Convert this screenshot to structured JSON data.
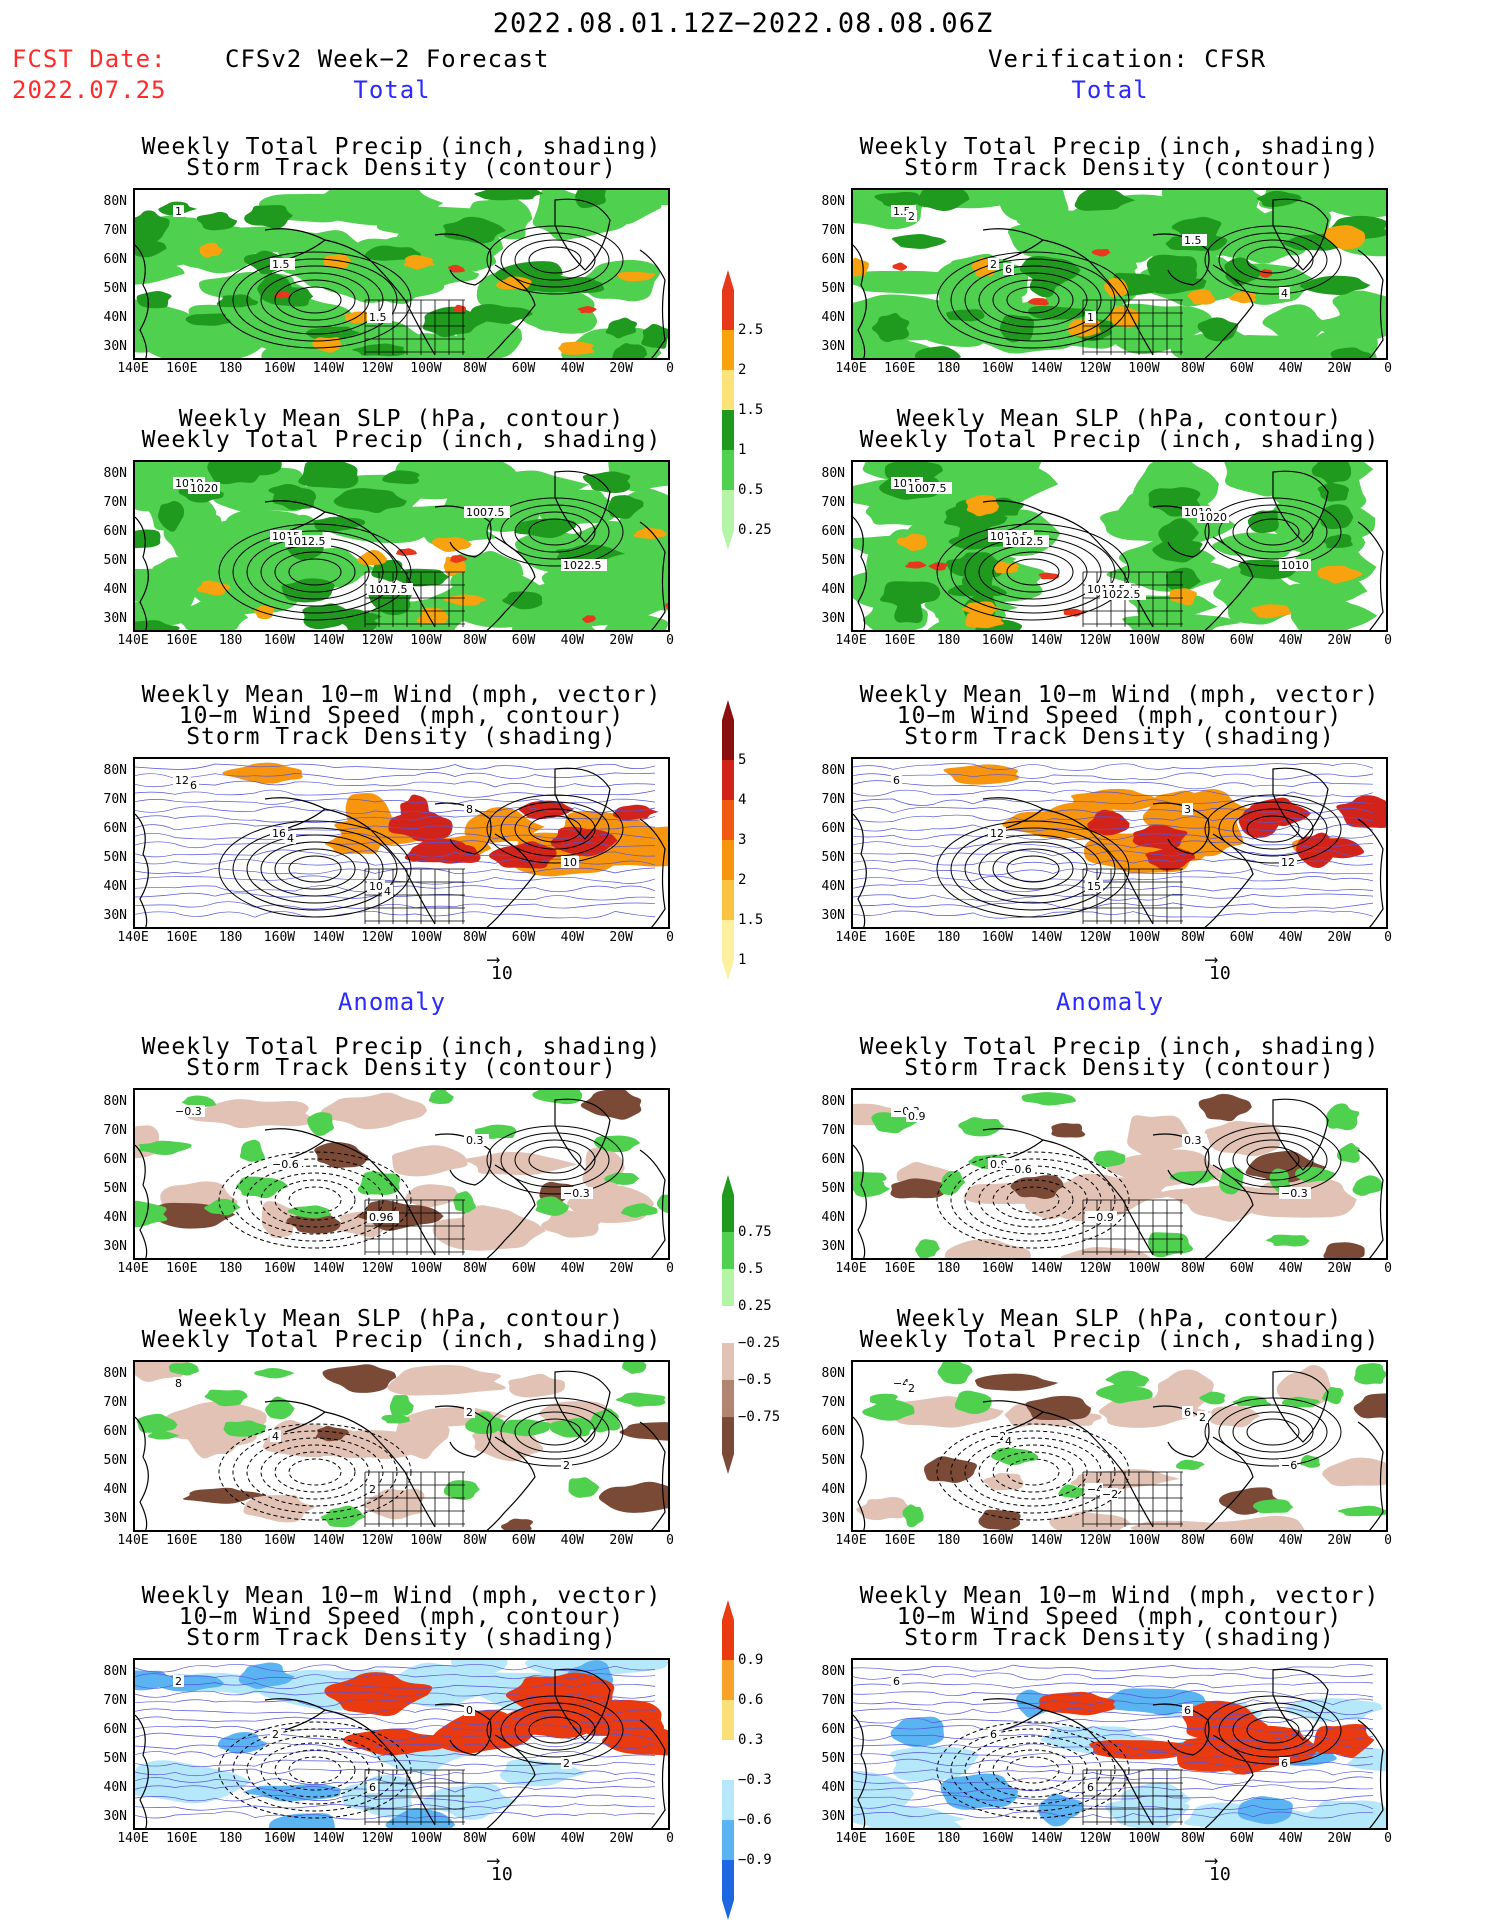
{
  "header": {
    "period": "2022.08.01.12Z−2022.08.08.06Z",
    "fcst_label": "FCST Date:",
    "fcst_date": "2022.07.25",
    "left_title": "CFSv2 Week−2 Forecast",
    "right_title": "Verification: CFSR"
  },
  "sections": {
    "total": "Total",
    "anomaly": "Anomaly"
  },
  "panel_titles": {
    "precip_storm": [
      "Weekly Total Precip (inch, shading)",
      "Storm Track Density (contour)"
    ],
    "slp_precip": [
      "Weekly Mean SLP (hPa, contour)",
      "Weekly Total Precip (inch, shading)"
    ],
    "wind_storm": [
      "Weekly Mean 10−m Wind (mph, vector)",
      "10−m Wind Speed (mph, contour)",
      "Storm Track Density (shading)"
    ]
  },
  "axes": {
    "lat_ticks": [
      "80N",
      "70N",
      "60N",
      "50N",
      "40N",
      "30N"
    ],
    "lon_ticks": [
      "140E",
      "160E",
      "180",
      "160W",
      "140W",
      "120W",
      "100W",
      "80W",
      "60W",
      "40W",
      "20W",
      "0"
    ]
  },
  "vector_ref": "10",
  "colorbars": {
    "precip_total": {
      "labels": [
        "2.5",
        "2",
        "1.5",
        "1",
        "0.5",
        "0.25"
      ],
      "colors": [
        "#e8381c",
        "#f7a20e",
        "#fbe37a",
        "#1f9a1f",
        "#4fd04f",
        "#b5f5a8"
      ]
    },
    "storm_total": {
      "labels": [
        "5",
        "4",
        "3",
        "2",
        "1.5",
        "1"
      ],
      "colors": [
        "#8c0f0f",
        "#d2231b",
        "#f25a12",
        "#f7960e",
        "#fbc341",
        "#fdf0a0"
      ]
    },
    "precip_anom": {
      "labels": [
        "0.75",
        "0.5",
        "0.25",
        "−0.25",
        "−0.5",
        "−0.75"
      ],
      "colors": [
        "#1f9a1f",
        "#4fd04f",
        "#b5f5a8",
        "#ffffff",
        "#e1c2b4",
        "#b08572",
        "#7a4a37"
      ]
    },
    "storm_anom": {
      "labels": [
        "0.9",
        "0.6",
        "0.3",
        "−0.3",
        "−0.6",
        "−0.9"
      ],
      "colors": [
        "#ea3a10",
        "#f7a228",
        "#fbe07a",
        "#ffffff",
        "#b6e8fb",
        "#5ab4f2",
        "#1d68e2"
      ]
    }
  },
  "contour_labels": {
    "l1": [
      "1",
      "1.5",
      "1.5"
    ],
    "r1": [
      "1.5",
      "2",
      "1",
      "1.5",
      "4",
      "2",
      "6"
    ],
    "l2": [
      "1010",
      "1015",
      "1017.5",
      "1007.5",
      "1022.5",
      "1020",
      "1012.5"
    ],
    "r2": [
      "1015",
      "1012.5",
      "1017.5",
      "1010",
      "1010",
      "1007.5",
      "1012.5",
      "1022.5",
      "1020"
    ],
    "l3": [
      "12",
      "16",
      "10",
      "8",
      "10",
      "6",
      "4",
      "4"
    ],
    "r3": [
      "6",
      "12",
      "15",
      "3",
      "12"
    ],
    "l4": [
      "−0.3",
      "−0.6",
      "0.96",
      "0.3",
      "−0.3"
    ],
    "r4": [
      "−0.3",
      "0.9",
      "−0.9",
      "0.3",
      "−0.3",
      "0.9",
      "−0.6"
    ],
    "l5": [
      "8",
      "4",
      "2",
      "2",
      "2"
    ],
    "r5": [
      "−4",
      "−2",
      "−4",
      "6",
      "−6",
      "2",
      "4",
      "−2",
      "2"
    ],
    "l6": [
      "2",
      "2",
      "6",
      "0",
      "2"
    ],
    "r6": [
      "6",
      "6",
      "6",
      "6",
      "6"
    ]
  }
}
